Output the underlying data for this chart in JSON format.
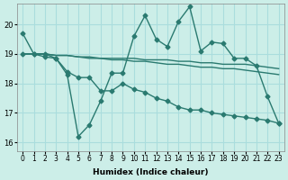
{
  "x": [
    0,
    1,
    2,
    3,
    4,
    5,
    6,
    7,
    8,
    9,
    10,
    11,
    12,
    13,
    14,
    15,
    16,
    17,
    18,
    19,
    20,
    21,
    22,
    23
  ],
  "line1": [
    19.7,
    19.0,
    19.0,
    18.85,
    18.3,
    16.2,
    16.6,
    17.4,
    18.35,
    18.35,
    19.6,
    20.3,
    19.5,
    19.25,
    20.1,
    20.6,
    19.1,
    19.4,
    19.35,
    18.85,
    18.85,
    18.6,
    17.55,
    16.65
  ],
  "line2": [
    19.0,
    19.0,
    19.0,
    18.95,
    18.95,
    18.9,
    18.9,
    18.85,
    18.85,
    18.85,
    18.85,
    18.8,
    18.8,
    18.8,
    18.75,
    18.75,
    18.7,
    18.7,
    18.65,
    18.65,
    18.65,
    18.6,
    18.55,
    18.5
  ],
  "line3": [
    19.0,
    19.0,
    19.0,
    18.95,
    18.95,
    18.9,
    18.85,
    18.85,
    18.8,
    18.8,
    18.75,
    18.75,
    18.7,
    18.65,
    18.65,
    18.6,
    18.55,
    18.55,
    18.5,
    18.5,
    18.45,
    18.4,
    18.35,
    18.3
  ],
  "line4": [
    19.0,
    19.0,
    18.9,
    18.85,
    18.4,
    18.2,
    18.2,
    17.75,
    17.75,
    18.0,
    17.8,
    17.7,
    17.5,
    17.4,
    17.2,
    17.1,
    17.1,
    17.0,
    16.95,
    16.9,
    16.85,
    16.8,
    16.75,
    16.65
  ],
  "bg_color": "#cceee8",
  "line_color": "#2a7a70",
  "grid_color": "#aadddd",
  "xlabel": "Humidex (Indice chaleur)",
  "yticks": [
    16,
    17,
    18,
    19,
    20
  ],
  "xtick_labels": [
    "0",
    "1",
    "2",
    "3",
    "4",
    "5",
    "6",
    "7",
    "8",
    "9",
    "10",
    "11",
    "12",
    "13",
    "14",
    "15",
    "16",
    "17",
    "18",
    "19",
    "20",
    "21",
    "22",
    "23"
  ],
  "ylim": [
    15.7,
    20.7
  ],
  "xlim": [
    -0.5,
    23.5
  ]
}
